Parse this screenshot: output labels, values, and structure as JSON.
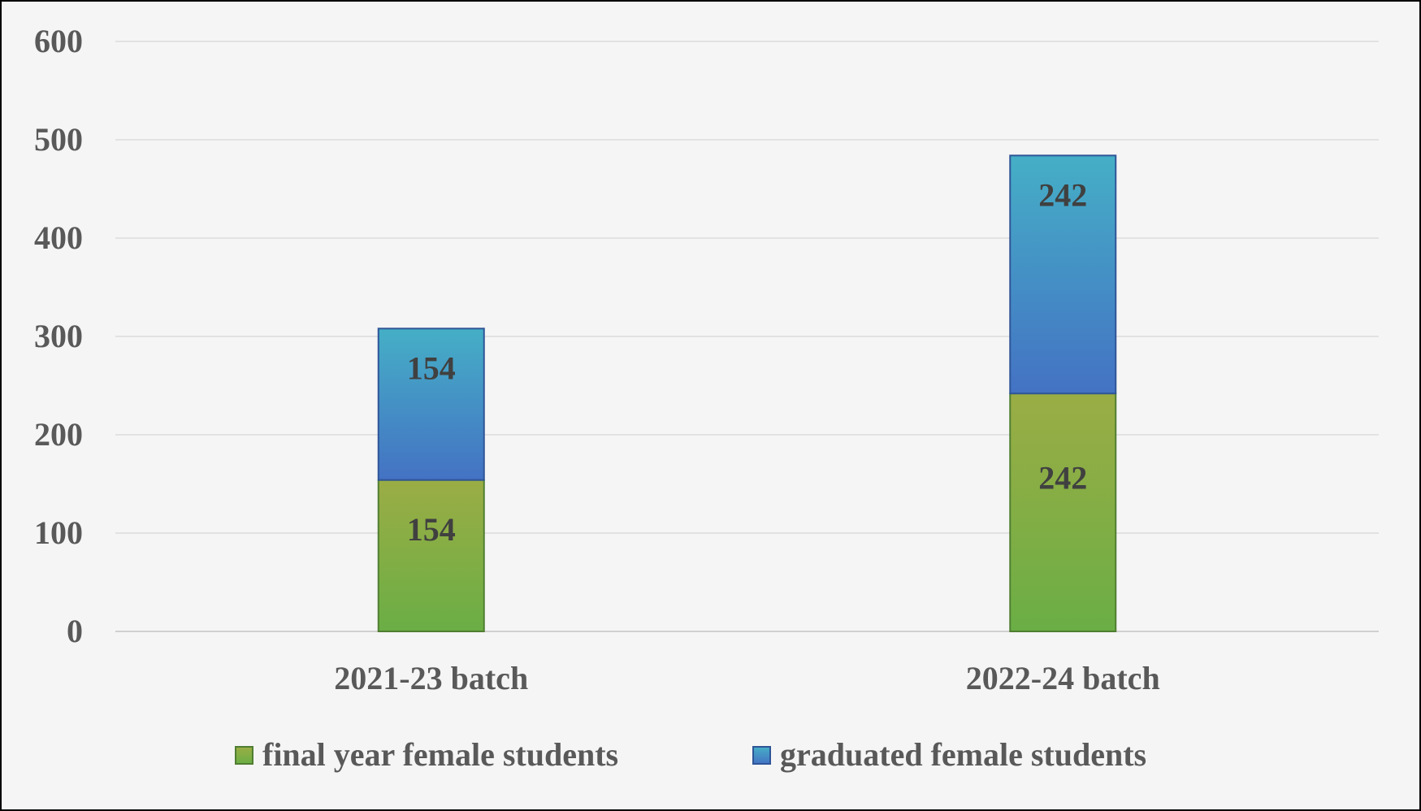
{
  "chart_data": {
    "type": "bar",
    "stacked": true,
    "title": "",
    "xlabel": "",
    "ylabel": "",
    "categories": [
      "2021-23 batch",
      "2022-24 batch"
    ],
    "series": [
      {
        "name": "final year female students",
        "values": [
          154,
          242
        ],
        "color_top": "#9bad45",
        "color_bottom": "#6aae45",
        "border": "#507e32"
      },
      {
        "name": "graduated female students",
        "values": [
          154,
          242
        ],
        "color_top": "#45afc6",
        "color_bottom": "#4472c4",
        "border": "#2f5597"
      }
    ],
    "data_labels": [
      [
        "154",
        "242"
      ],
      [
        "154",
        "242"
      ]
    ],
    "ylim": [
      0,
      600
    ],
    "yticks": [
      "0",
      "100",
      "200",
      "300",
      "400",
      "500",
      "600"
    ],
    "grid": true,
    "legend_position": "bottom"
  }
}
